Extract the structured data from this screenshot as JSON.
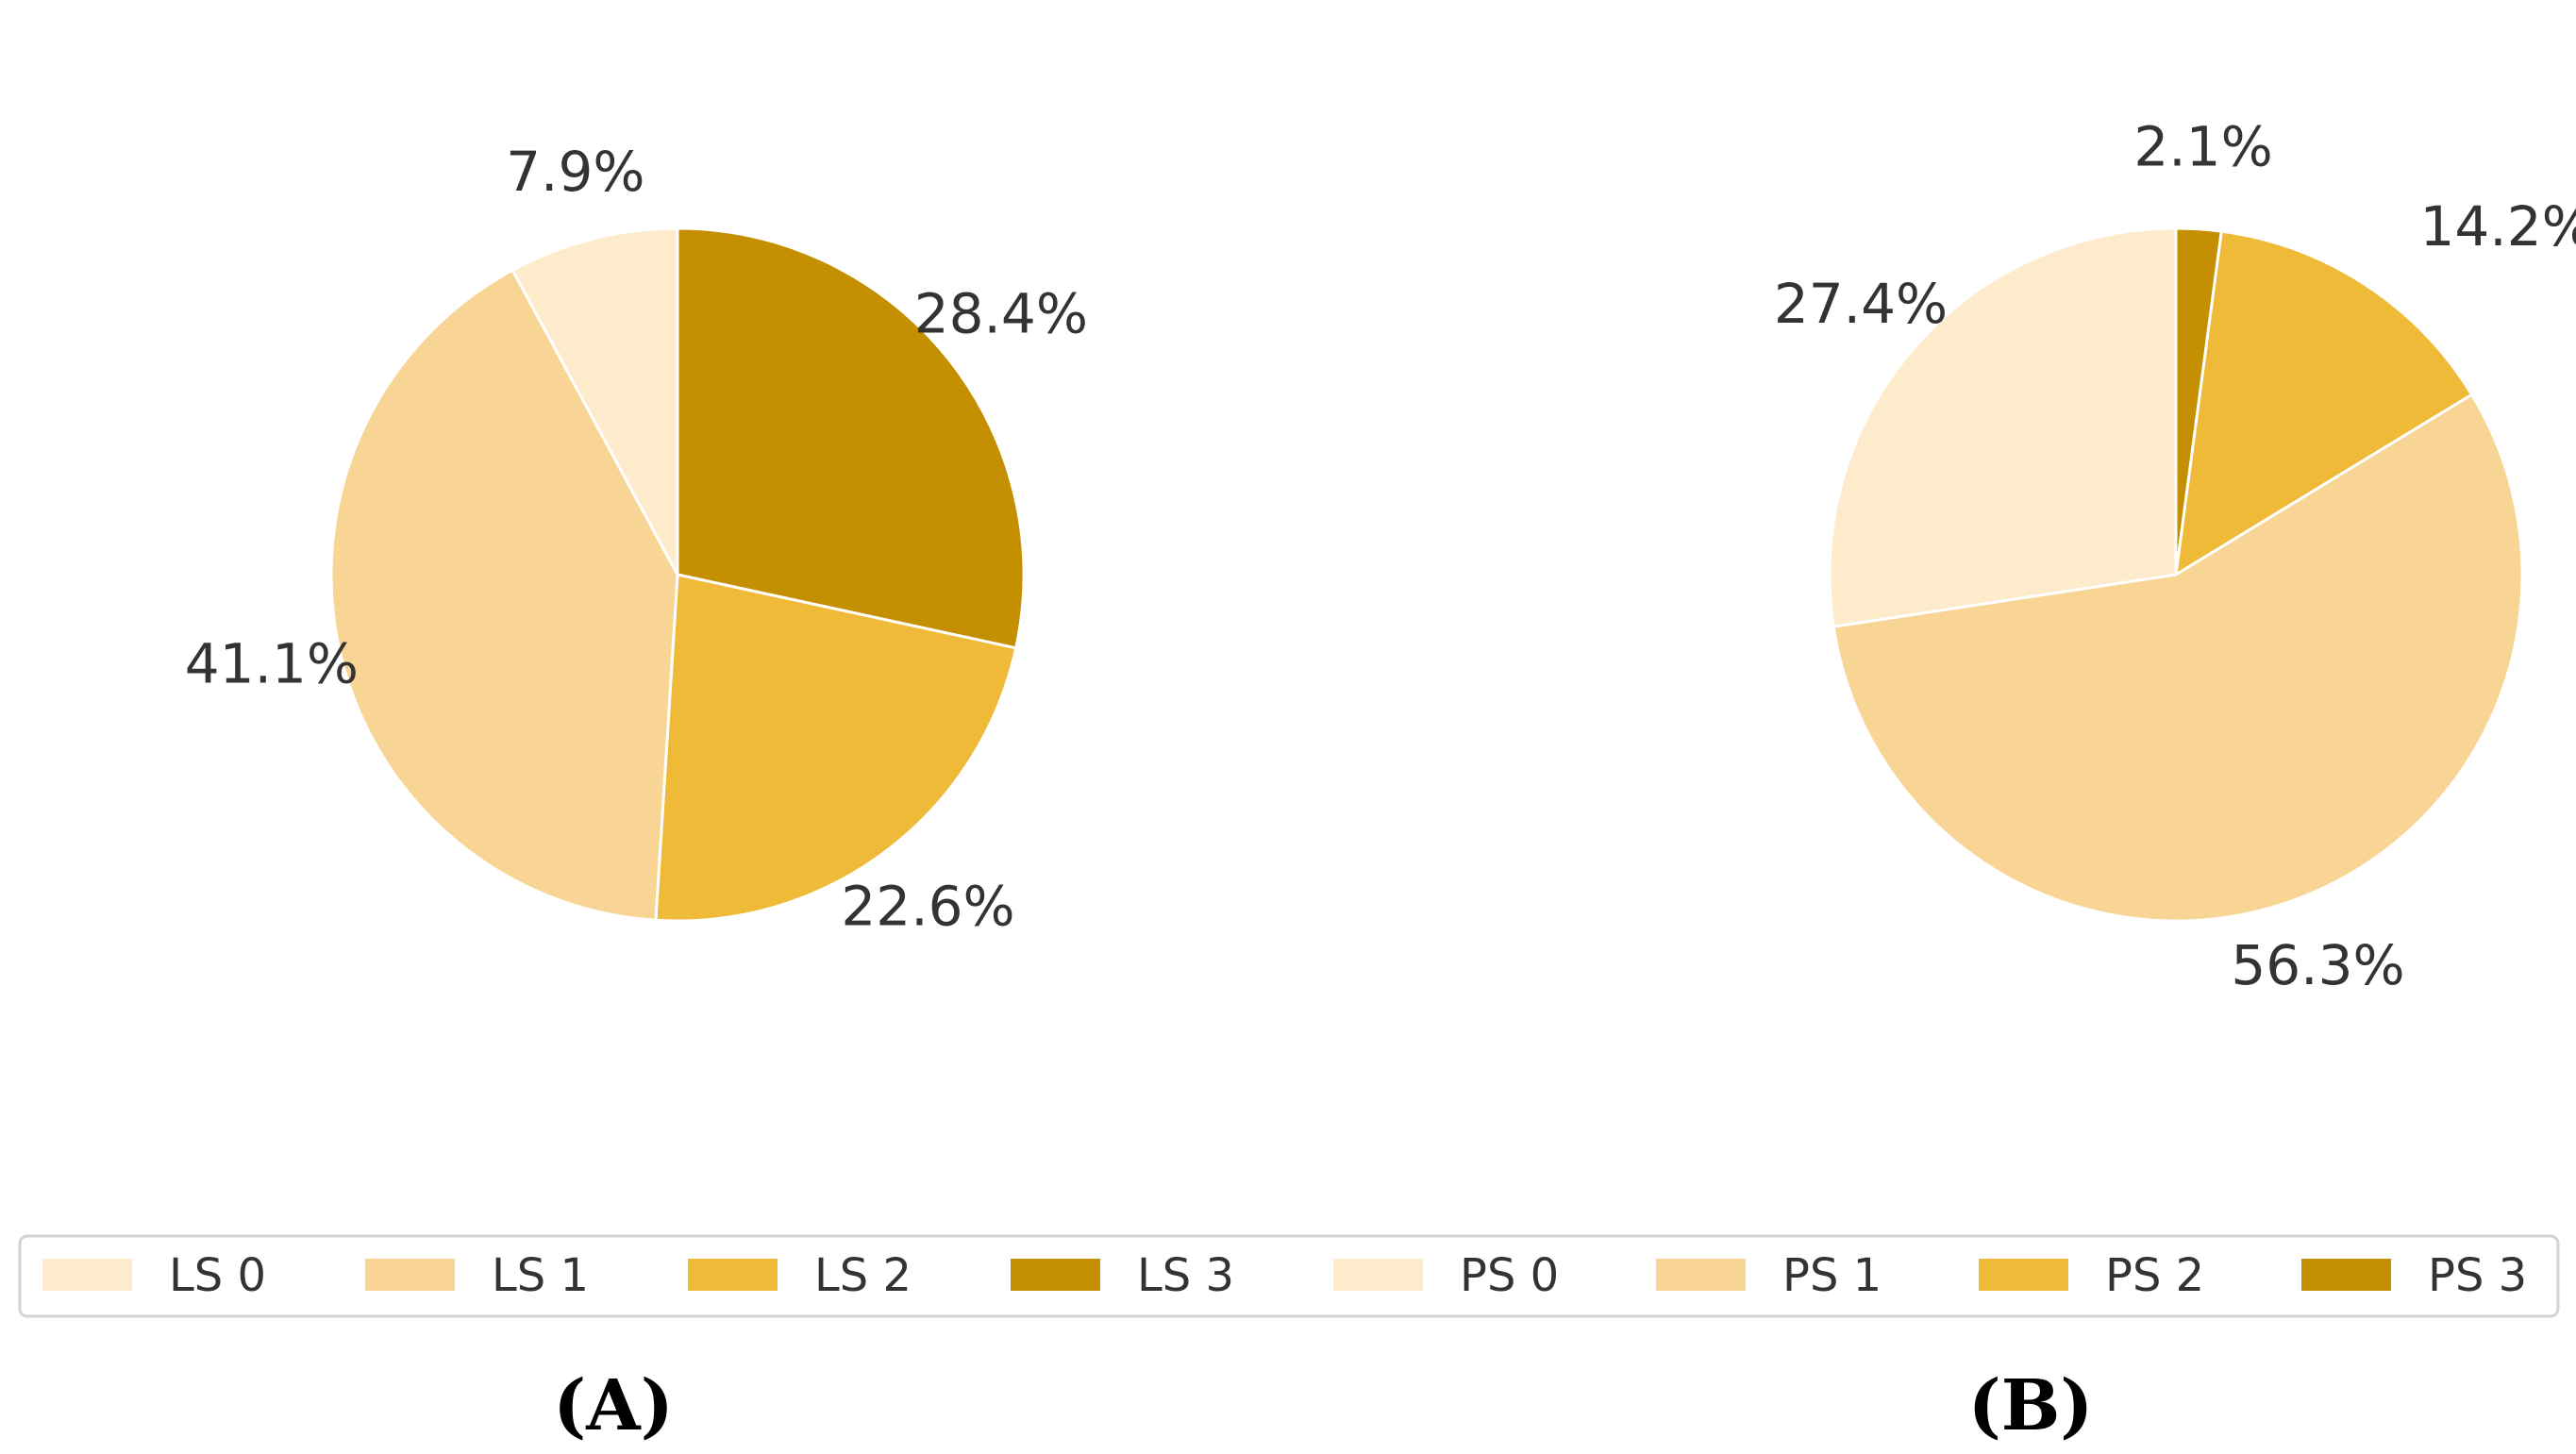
{
  "chart_data": [
    {
      "type": "pie",
      "panel_label": "A",
      "start_angle_deg": 90,
      "direction": "clockwise",
      "slices": [
        {
          "label": "LS 3",
          "value": 28.4,
          "text": "28.4%",
          "color": "#c48f00"
        },
        {
          "label": "LS 2",
          "value": 22.6,
          "text": "22.6%",
          "color": "#eeba37"
        },
        {
          "label": "LS 1",
          "value": 41.1,
          "text": "41.1%",
          "color": "#f8d594"
        },
        {
          "label": "LS 0",
          "value": 7.9,
          "text": "7.9%",
          "color": "#fdebcb"
        }
      ]
    },
    {
      "type": "pie",
      "panel_label": "B",
      "start_angle_deg": 90,
      "direction": "clockwise",
      "slices": [
        {
          "label": "PS 3",
          "value": 2.1,
          "text": "2.1%",
          "color": "#c48f00"
        },
        {
          "label": "PS 2",
          "value": 14.2,
          "text": "14.2%",
          "color": "#eeba37"
        },
        {
          "label": "PS 1",
          "value": 56.3,
          "text": "56.3%",
          "color": "#f8d594"
        },
        {
          "label": "PS 0",
          "value": 27.4,
          "text": "27.4%",
          "color": "#fdebcb"
        }
      ]
    }
  ],
  "legend": {
    "items": [
      {
        "label": "LS 0",
        "color": "#fdebcb"
      },
      {
        "label": "LS 1",
        "color": "#f8d594"
      },
      {
        "label": "LS 2",
        "color": "#eeba37"
      },
      {
        "label": "LS 3",
        "color": "#c48f00"
      },
      {
        "label": "PS 0",
        "color": "#fdebcb"
      },
      {
        "label": "PS 1",
        "color": "#f8d594"
      },
      {
        "label": "PS 2",
        "color": "#eeba37"
      },
      {
        "label": "PS 3",
        "color": "#c48f00"
      }
    ]
  },
  "panel_labels": [
    "(A)",
    "(B)"
  ]
}
